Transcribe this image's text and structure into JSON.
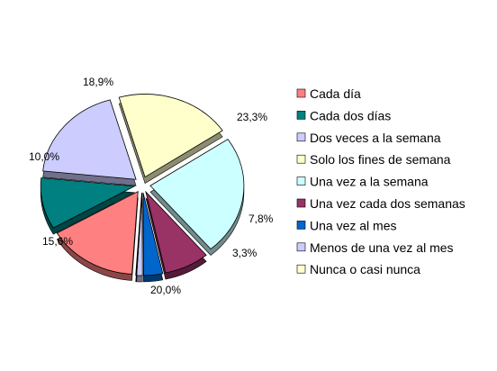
{
  "chart_data": {
    "type": "pie",
    "title": "",
    "style": "3d-exploded",
    "legend_position": "right",
    "unit": "%",
    "slices": [
      {
        "label": "Cada día",
        "value": 15.6,
        "display": "15,6%",
        "color": "#ff8080"
      },
      {
        "label": "Cada dos días",
        "value": 10.0,
        "display": "10,0%",
        "color": "#008080"
      },
      {
        "label": "Dos veces a la semana",
        "value": 18.9,
        "display": "18,9%",
        "color": "#ccccff"
      },
      {
        "label": "Solo los fines de semana",
        "value": 20.0,
        "display": "20,0%",
        "color": "#ffffcc"
      },
      {
        "label": "Una vez a la semana",
        "value": 23.3,
        "display": "23,3%",
        "color": "#ccffff"
      },
      {
        "label": "Una vez cada dos semanas",
        "value": 7.8,
        "display": "7,8%",
        "color": "#993366"
      },
      {
        "label": "Una vez al mes",
        "value": 3.3,
        "display": "3,3%",
        "color": "#0066cc"
      },
      {
        "label": "Menos de una vez al mes",
        "value": 1.0,
        "display": "",
        "color": "#ccccff"
      },
      {
        "label": "Nunca o casi nunca",
        "value": 0.1,
        "display": "",
        "color": "#ffffcc"
      }
    ]
  }
}
